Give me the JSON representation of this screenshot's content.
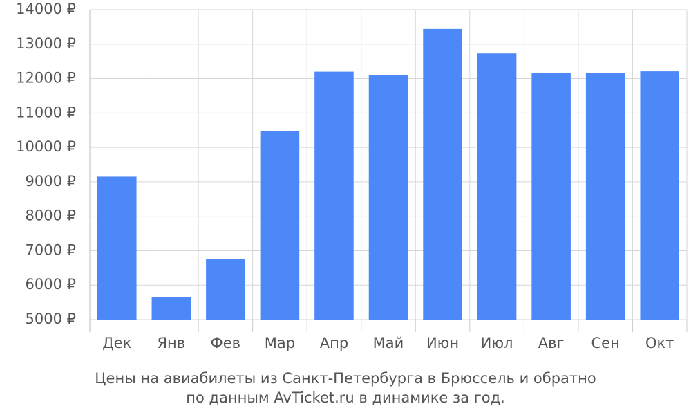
{
  "chart_data": {
    "type": "bar",
    "title": "Цены на авиабилеты из Санкт-Петербурга в Брюссель и обратно",
    "subtitle": "по данным AvTicket.ru в динамике за год.",
    "categories": [
      "Дек",
      "Янв",
      "Фев",
      "Мар",
      "Апр",
      "Май",
      "Июн",
      "Июл",
      "Авг",
      "Сен",
      "Окт"
    ],
    "values": [
      9150,
      5660,
      6750,
      10470,
      12200,
      12100,
      13440,
      12730,
      12170,
      12170,
      12210
    ],
    "color": "#4d88f9",
    "ylim": [
      5000,
      14000
    ],
    "yticks": [
      {
        "value": 5000,
        "label": "5000 ₽"
      },
      {
        "value": 6000,
        "label": "6000 ₽"
      },
      {
        "value": 7000,
        "label": "7000 ₽"
      },
      {
        "value": 8000,
        "label": "8000 ₽"
      },
      {
        "value": 9000,
        "label": "9000 ₽"
      },
      {
        "value": 10000,
        "label": "10000 ₽"
      },
      {
        "value": 11000,
        "label": "11000 ₽"
      },
      {
        "value": 12000,
        "label": "12000 ₽"
      },
      {
        "value": 13000,
        "label": "13000 ₽"
      },
      {
        "value": 14000,
        "label": "14000 ₽"
      }
    ],
    "grid": true
  }
}
